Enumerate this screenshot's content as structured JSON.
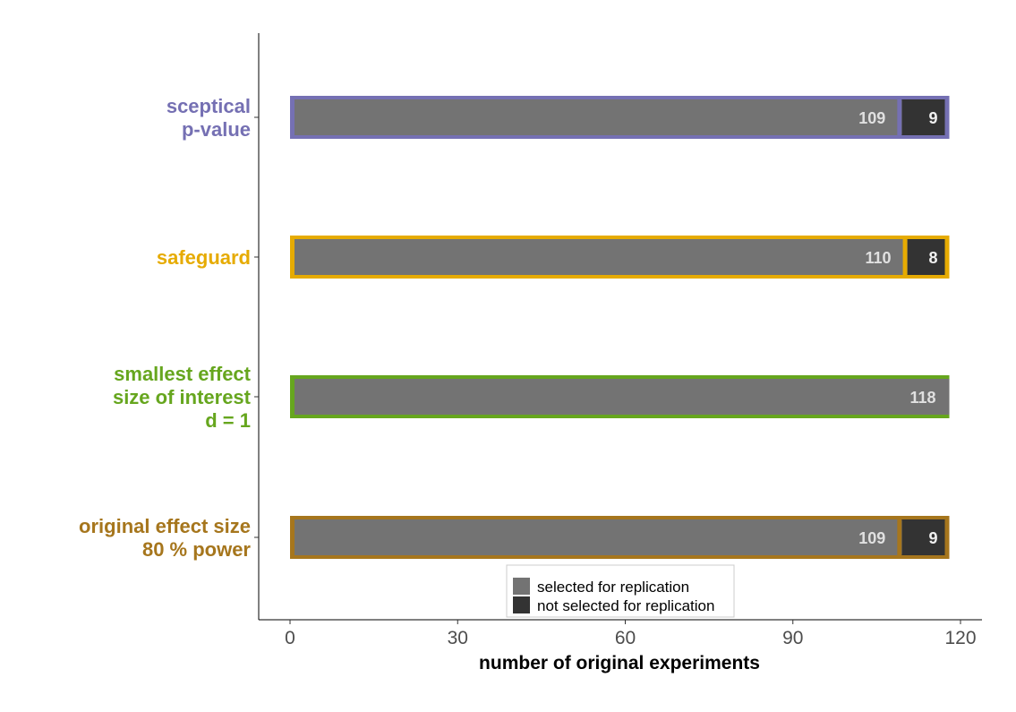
{
  "chart_data": {
    "type": "bar",
    "orientation": "horizontal",
    "stacked": true,
    "categories": [
      {
        "lines": [
          "sceptical",
          "p-value"
        ],
        "color": "#7570B3"
      },
      {
        "lines": [
          "safeguard"
        ],
        "color": "#E6AB02"
      },
      {
        "lines": [
          "smallest effect",
          "size of interest",
          "d = 1"
        ],
        "color": "#66A61E"
      },
      {
        "lines": [
          "original effect size",
          "80 % power"
        ],
        "color": "#A6761D"
      }
    ],
    "series": [
      {
        "name": "selected for replication",
        "color": "#737373",
        "label_color": "#E0E0E0",
        "values": [
          109,
          110,
          118,
          109
        ]
      },
      {
        "name": "not selected for replication",
        "color": "#333333",
        "label_color": "#F0F0F0",
        "values": [
          9,
          8,
          0,
          9
        ]
      }
    ],
    "xlabel": "number of original experiments",
    "xlim": [
      0,
      123
    ],
    "xticks": [
      0,
      30,
      60,
      90,
      120
    ],
    "grid": false,
    "legend_position": "bottom-center inside"
  }
}
